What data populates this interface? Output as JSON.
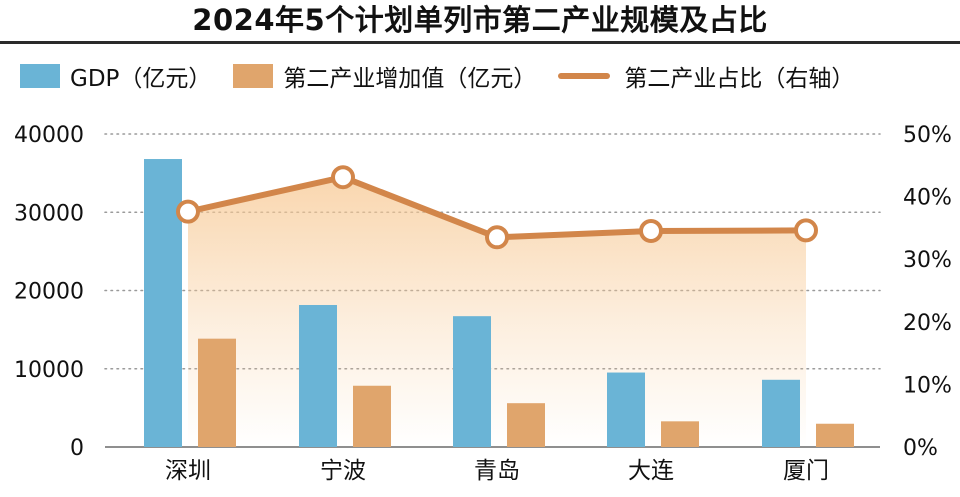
{
  "title": "2024年5个计划单列市第二产业规模及占比",
  "colors": {
    "gdp": "#6ab4d6",
    "industry": "#e0a56c",
    "ratio_line": "#d2864a",
    "area_fill": "#f7c994"
  },
  "legend": {
    "gdp": "GDP（亿元）",
    "industry": "第二产业增加值（亿元）",
    "ratio": "第二产业占比（右轴）"
  },
  "chart_data": {
    "type": "bar",
    "title": "2024年5个计划单列市第二产业规模及占比",
    "categories": [
      "深圳",
      "宁波",
      "青岛",
      "大连",
      "厦门"
    ],
    "series": [
      {
        "name": "GDP（亿元）",
        "kind": "bar",
        "axis": "left",
        "values": [
          36802,
          18148,
          16719,
          9516,
          8589
        ]
      },
      {
        "name": "第二产业增加值（亿元）",
        "kind": "bar",
        "axis": "left",
        "values": [
          13844,
          7828,
          5599,
          3281,
          2973
        ]
      },
      {
        "name": "第二产业占比（右轴）",
        "kind": "line",
        "axis": "right",
        "values": [
          37.6,
          43.1,
          33.5,
          34.5,
          34.6
        ]
      }
    ],
    "ylim_left": [
      0,
      40000
    ],
    "ylim_right": [
      0,
      50
    ],
    "yticks_left": [
      "0",
      "10000",
      "20000",
      "30000",
      "40000"
    ],
    "yticks_right": [
      "0%",
      "10%",
      "20%",
      "30%",
      "40%",
      "50%"
    ],
    "grid": true,
    "legend_position": "top"
  }
}
